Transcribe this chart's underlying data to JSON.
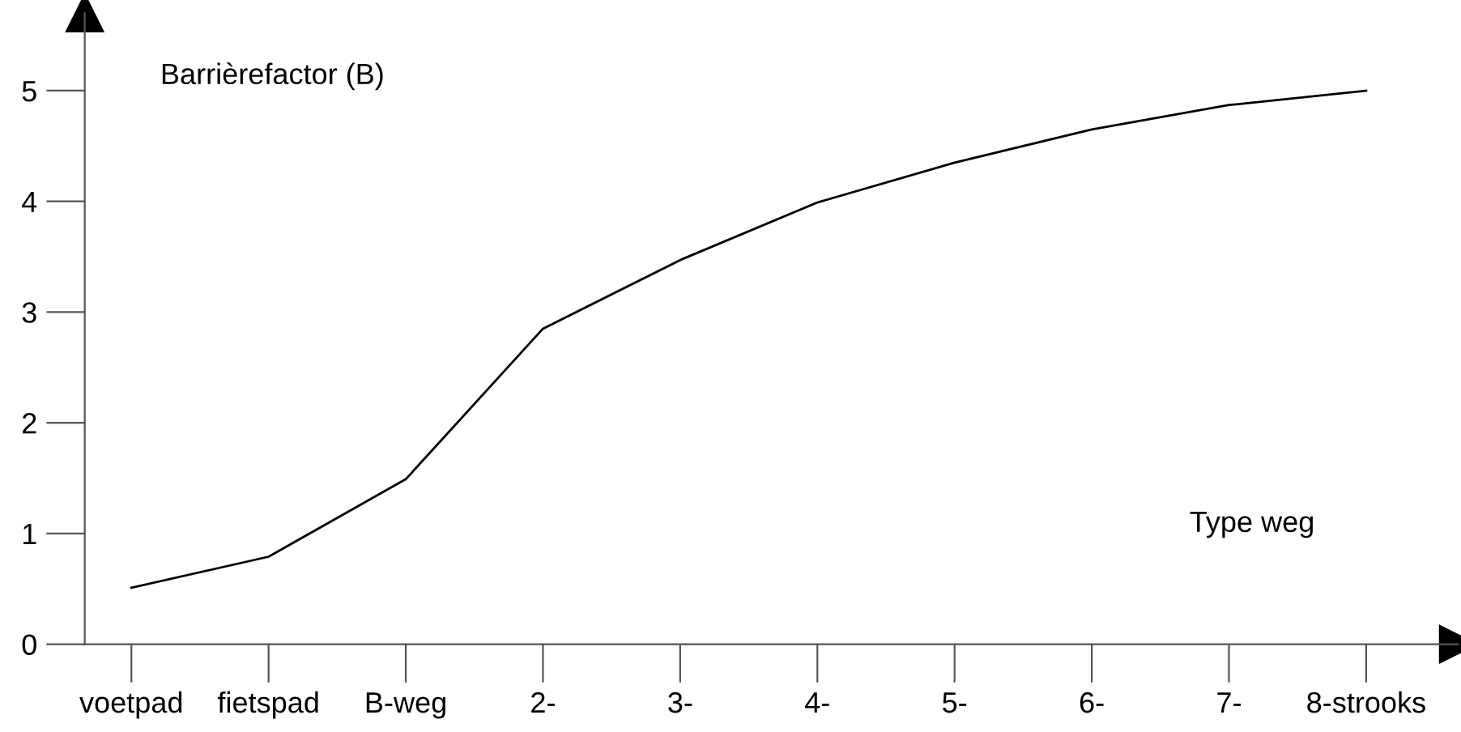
{
  "chart_data": {
    "type": "line",
    "xlabel": "Type weg",
    "ylabel": "Barrièrefactor (B)",
    "categories": [
      "voetpad",
      "fietspad",
      "B-weg",
      "2-",
      "3-",
      "4-",
      "5-",
      "6-",
      "7-",
      "8-strooks"
    ],
    "ylim": [
      0,
      5.7
    ],
    "yticks": [
      0,
      1,
      2,
      3,
      4,
      5
    ],
    "series": [
      {
        "color": "#000000",
        "values": [
          0.51,
          0.79,
          1.49,
          2.85,
          3.47,
          3.99,
          4.35,
          4.65,
          4.87,
          5.0
        ]
      }
    ],
    "grid": false,
    "marker": "none",
    "line_style": "solid"
  }
}
